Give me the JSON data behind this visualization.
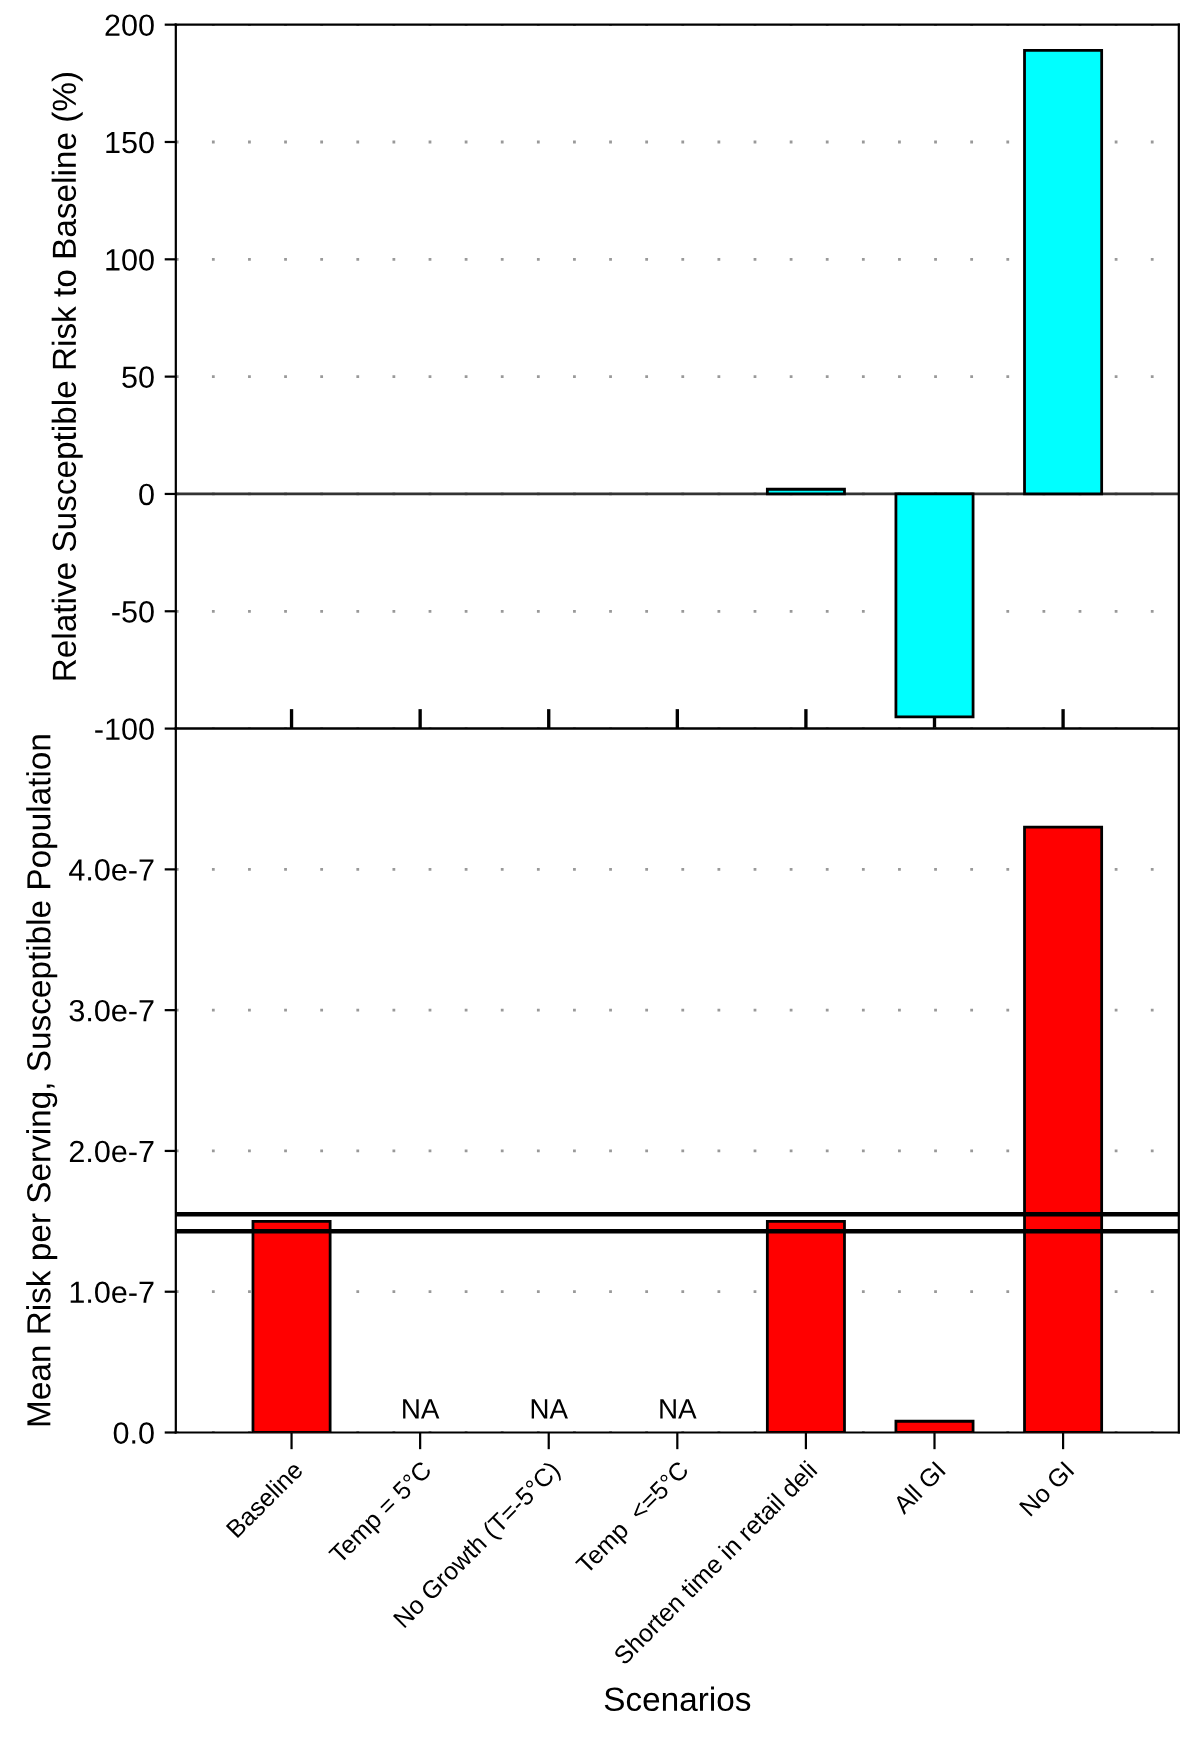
{
  "chart_data": [
    {
      "type": "bar",
      "ylabel": "Relative Susceptible Risk to Baseline (%)",
      "categories": [
        null,
        null,
        null,
        null,
        null,
        null,
        null
      ],
      "values": [
        null,
        null,
        null,
        null,
        2,
        -95,
        189
      ],
      "color": "#00ffff",
      "ylim": [
        -100,
        200
      ],
      "yticks": [
        -100,
        -50,
        0,
        50,
        100,
        150,
        200
      ],
      "grid": "y",
      "tick_labels": "y"
    },
    {
      "type": "bar",
      "ylabel": "Mean Risk per Serving, Susceptible Population",
      "xlabel": "Scenarios",
      "categories": [
        "Baseline",
        "Temp = 5°C",
        "No Growth (T=-5°C)",
        "Temp  <=5°C",
        "Shorten time in retail deli",
        "All GI",
        "No GI"
      ],
      "values": [
        1.5e-07,
        null,
        null,
        null,
        1.5e-07,
        8e-09,
        4.3e-07
      ],
      "color": "#ff0000",
      "value_labels": [
        null,
        "NA",
        "NA",
        "NA",
        null,
        null,
        null
      ],
      "ylim": [
        0,
        5e-07
      ],
      "yticks": [
        {
          "value": 0,
          "label": "0.0"
        },
        {
          "value": 1e-07,
          "label": "1.0e-7"
        },
        {
          "value": 2e-07,
          "label": "2.0e-7"
        },
        {
          "value": 3e-07,
          "label": "3.0e-7"
        },
        {
          "value": 4e-07,
          "label": "4.0e-7"
        }
      ],
      "grid": "y",
      "ref_lines": [
        {
          "axis": "y",
          "value": 1.55e-07,
          "color": "#000000"
        },
        {
          "axis": "y",
          "value": 1.43e-07,
          "color": "#000000"
        }
      ]
    }
  ]
}
